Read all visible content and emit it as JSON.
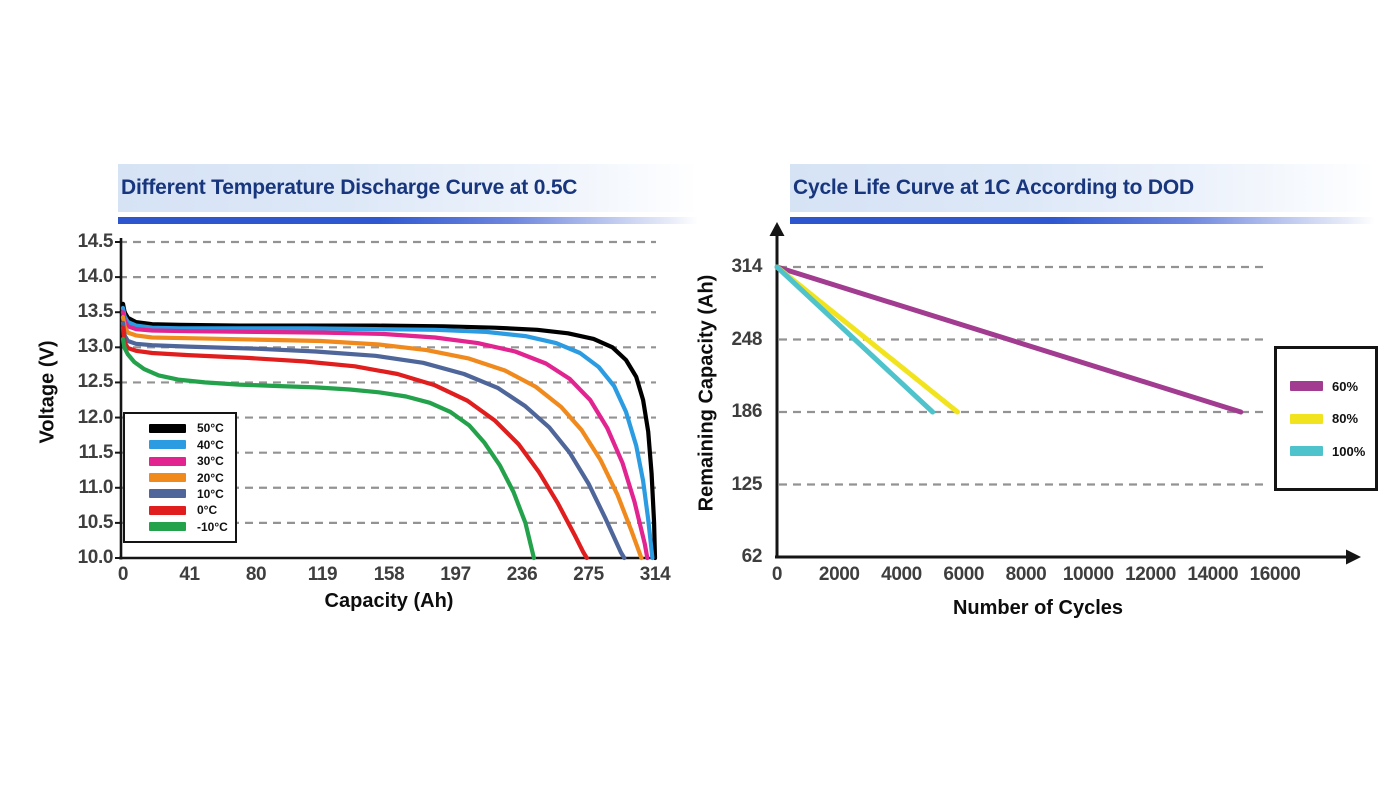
{
  "colors": {
    "title_text": "#17367D",
    "banner_bar_blue": "#2C55CE",
    "banner_background_blue": "#D6E3F5",
    "grid_dashed": "#939393",
    "axis": "#151515",
    "tick_text": "#3E3E3E"
  },
  "chart_data": [
    {
      "type": "line",
      "title": "Different Temperature Discharge Curve at 0.5C",
      "xlabel": "Capacity (Ah)",
      "ylabel": "Voltage (V)",
      "xlim": [
        0,
        314
      ],
      "ylim": [
        10.0,
        14.5
      ],
      "xticks": [
        "0",
        "41",
        "80",
        "119",
        "158",
        "197",
        "236",
        "275",
        "314"
      ],
      "yticks": [
        "14.5",
        "14.0",
        "13.5",
        "13.0",
        "12.5",
        "12.0",
        "11.5",
        "11.0",
        "10.5",
        "10.0"
      ],
      "grid": "horizontal dashed",
      "legend_position": "lower left",
      "series": [
        {
          "name": "50°C",
          "color": "#000000",
          "points": [
            [
              0,
              13.62
            ],
            [
              1,
              13.5
            ],
            [
              3,
              13.42
            ],
            [
              8,
              13.36
            ],
            [
              18,
              13.33
            ],
            [
              35,
              13.32
            ],
            [
              70,
              13.31
            ],
            [
              110,
              13.31
            ],
            [
              150,
              13.31
            ],
            [
              190,
              13.3
            ],
            [
              220,
              13.28
            ],
            [
              245,
              13.25
            ],
            [
              263,
              13.2
            ],
            [
              278,
              13.12
            ],
            [
              289,
              13.0
            ],
            [
              297,
              12.82
            ],
            [
              303,
              12.58
            ],
            [
              307,
              12.25
            ],
            [
              310,
              11.8
            ],
            [
              312,
              11.2
            ],
            [
              313.5,
              10.5
            ],
            [
              314,
              10.0
            ]
          ]
        },
        {
          "name": "40°C",
          "color": "#2B9CE2",
          "points": [
            [
              0,
              13.56
            ],
            [
              1,
              13.44
            ],
            [
              3,
              13.36
            ],
            [
              8,
              13.31
            ],
            [
              18,
              13.28
            ],
            [
              35,
              13.27
            ],
            [
              70,
              13.27
            ],
            [
              110,
              13.27
            ],
            [
              150,
              13.26
            ],
            [
              185,
              13.25
            ],
            [
              215,
              13.22
            ],
            [
              238,
              13.16
            ],
            [
              256,
              13.06
            ],
            [
              270,
              12.92
            ],
            [
              281,
              12.72
            ],
            [
              290,
              12.45
            ],
            [
              297,
              12.08
            ],
            [
              303,
              11.6
            ],
            [
              307,
              11.1
            ],
            [
              310,
              10.55
            ],
            [
              312.5,
              10.0
            ]
          ]
        },
        {
          "name": "30°C",
          "color": "#E22490",
          "points": [
            [
              0,
              13.5
            ],
            [
              1,
              13.38
            ],
            [
              3,
              13.3
            ],
            [
              8,
              13.26
            ],
            [
              18,
              13.24
            ],
            [
              40,
              13.23
            ],
            [
              80,
              13.22
            ],
            [
              120,
              13.21
            ],
            [
              155,
              13.19
            ],
            [
              185,
              13.14
            ],
            [
              210,
              13.06
            ],
            [
              232,
              12.94
            ],
            [
              250,
              12.77
            ],
            [
              264,
              12.55
            ],
            [
              276,
              12.25
            ],
            [
              286,
              11.85
            ],
            [
              295,
              11.35
            ],
            [
              302,
              10.8
            ],
            [
              308,
              10.2
            ],
            [
              309.5,
              10.0
            ]
          ]
        },
        {
          "name": "20°C",
          "color": "#F18A1D",
          "points": [
            [
              0,
              13.43
            ],
            [
              1,
              13.3
            ],
            [
              3,
              13.21
            ],
            [
              8,
              13.17
            ],
            [
              18,
              13.14
            ],
            [
              40,
              13.13
            ],
            [
              80,
              13.11
            ],
            [
              118,
              13.09
            ],
            [
              152,
              13.04
            ],
            [
              180,
              12.96
            ],
            [
              205,
              12.84
            ],
            [
              226,
              12.67
            ],
            [
              244,
              12.44
            ],
            [
              259,
              12.15
            ],
            [
              271,
              11.82
            ],
            [
              282,
              11.4
            ],
            [
              292,
              10.9
            ],
            [
              300,
              10.4
            ],
            [
              306,
              10.0
            ]
          ]
        },
        {
          "name": "10°C",
          "color": "#4E6699",
          "points": [
            [
              0,
              13.35
            ],
            [
              1,
              13.17
            ],
            [
              3,
              13.09
            ],
            [
              8,
              13.05
            ],
            [
              18,
              13.03
            ],
            [
              40,
              13.01
            ],
            [
              80,
              12.98
            ],
            [
              115,
              12.94
            ],
            [
              150,
              12.88
            ],
            [
              178,
              12.78
            ],
            [
              202,
              12.62
            ],
            [
              222,
              12.42
            ],
            [
              238,
              12.16
            ],
            [
              252,
              11.86
            ],
            [
              264,
              11.5
            ],
            [
              275,
              11.06
            ],
            [
              285,
              10.56
            ],
            [
              294,
              10.08
            ],
            [
              296,
              10.0
            ]
          ]
        },
        {
          "name": "0°C",
          "color": "#E01E1E",
          "points": [
            [
              0,
              13.28
            ],
            [
              1,
              13.07
            ],
            [
              3,
              12.99
            ],
            [
              8,
              12.95
            ],
            [
              18,
              12.92
            ],
            [
              40,
              12.89
            ],
            [
              75,
              12.85
            ],
            [
              108,
              12.8
            ],
            [
              138,
              12.73
            ],
            [
              163,
              12.62
            ],
            [
              185,
              12.46
            ],
            [
              204,
              12.24
            ],
            [
              220,
              11.96
            ],
            [
              234,
              11.62
            ],
            [
              246,
              11.22
            ],
            [
              257,
              10.78
            ],
            [
              267,
              10.32
            ],
            [
              272,
              10.08
            ],
            [
              274,
              10.0
            ]
          ]
        },
        {
          "name": "-10°C",
          "color": "#23A24B",
          "points": [
            [
              0,
              13.12
            ],
            [
              1,
              12.99
            ],
            [
              3,
              12.9
            ],
            [
              7,
              12.79
            ],
            [
              13,
              12.69
            ],
            [
              22,
              12.6
            ],
            [
              34,
              12.54
            ],
            [
              50,
              12.5
            ],
            [
              70,
              12.47
            ],
            [
              92,
              12.45
            ],
            [
              115,
              12.43
            ],
            [
              135,
              12.4
            ],
            [
              152,
              12.36
            ],
            [
              168,
              12.3
            ],
            [
              182,
              12.21
            ],
            [
              194,
              12.08
            ],
            [
              205,
              11.89
            ],
            [
              214,
              11.64
            ],
            [
              223,
              11.32
            ],
            [
              231,
              10.94
            ],
            [
              238,
              10.5
            ],
            [
              242,
              10.1
            ],
            [
              243,
              10.0
            ]
          ]
        }
      ]
    },
    {
      "type": "line",
      "title": "Cycle Life Curve at 1C According to DOD",
      "xlabel": "Number of Cycles",
      "ylabel": "Remaining Capacity (Ah)",
      "xlim": [
        0,
        16000
      ],
      "ylim": [
        62,
        314
      ],
      "xticks": [
        "0",
        "2000",
        "4000",
        "6000",
        "8000",
        "10000",
        "12000",
        "14000",
        "16000"
      ],
      "yticks": [
        "314",
        "248",
        "186",
        "125",
        "62"
      ],
      "grid": "horizontal dashed",
      "legend_position": "center right",
      "axis_arrows": true,
      "series": [
        {
          "name": "60%",
          "color": "#A23C90",
          "points": [
            [
              0,
              314
            ],
            [
              14900,
              186
            ]
          ]
        },
        {
          "name": "80%",
          "color": "#F1E41F",
          "points": [
            [
              0,
              314
            ],
            [
              5800,
              186
            ]
          ]
        },
        {
          "name": "100%",
          "color": "#4EC3CB",
          "points": [
            [
              0,
              314
            ],
            [
              5000,
              186
            ]
          ]
        }
      ]
    }
  ]
}
